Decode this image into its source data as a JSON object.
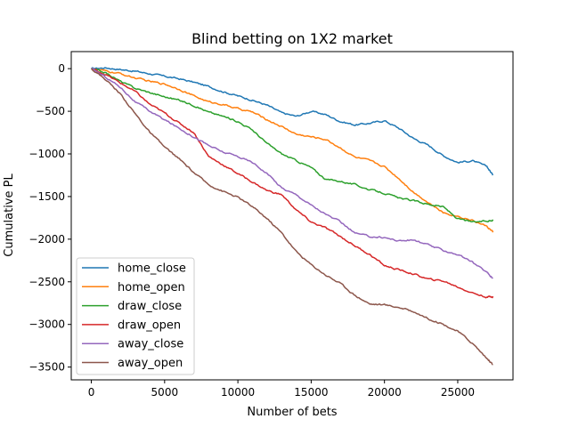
{
  "chart_data": {
    "type": "line",
    "title": "Blind betting on 1X2 market",
    "xlabel": "Number of bets",
    "ylabel": "Cumulative PL",
    "xlim": [
      -1370,
      28770
    ],
    "ylim": [
      -3650,
      200
    ],
    "xticks": [
      0,
      5000,
      10000,
      15000,
      20000,
      25000
    ],
    "xtick_labels": [
      "0",
      "5000",
      "10000",
      "15000",
      "20000",
      "25000"
    ],
    "yticks": [
      0,
      -500,
      -1000,
      -1500,
      -2000,
      -2500,
      -3000,
      -3500
    ],
    "ytick_labels": [
      "0",
      "−500",
      "−1000",
      "−1500",
      "−2000",
      "−2500",
      "−3000",
      "−3500"
    ],
    "grid": false,
    "legend_position": "lower-left",
    "series": [
      {
        "name": "home_close",
        "color": "#1f77b4",
        "x": [
          0,
          1000,
          2000,
          3000,
          4000,
          5000,
          6000,
          7000,
          8000,
          9000,
          10000,
          11000,
          12000,
          13000,
          14000,
          15000,
          16000,
          17000,
          18000,
          19000,
          20000,
          21000,
          22000,
          23000,
          24000,
          25000,
          26000,
          27000,
          27400
        ],
        "y": [
          0,
          10,
          -10,
          -30,
          -60,
          -90,
          -120,
          -160,
          -210,
          -270,
          -320,
          -370,
          -430,
          -520,
          -560,
          -500,
          -540,
          -620,
          -660,
          -640,
          -610,
          -700,
          -820,
          -900,
          -1020,
          -1100,
          -1080,
          -1150,
          -1250
        ]
      },
      {
        "name": "home_open",
        "color": "#ff7f0e",
        "x": [
          0,
          1000,
          2000,
          3000,
          4000,
          5000,
          6000,
          7000,
          8000,
          9000,
          10000,
          11000,
          12000,
          13000,
          14000,
          15000,
          16000,
          17000,
          18000,
          19000,
          20000,
          21000,
          22000,
          23000,
          24000,
          25000,
          26000,
          27000,
          27400
        ],
        "y": [
          0,
          -30,
          -60,
          -110,
          -150,
          -180,
          -240,
          -320,
          -390,
          -420,
          -470,
          -510,
          -600,
          -680,
          -770,
          -800,
          -830,
          -930,
          -1040,
          -1080,
          -1150,
          -1290,
          -1450,
          -1570,
          -1690,
          -1730,
          -1780,
          -1850,
          -1920
        ]
      },
      {
        "name": "draw_close",
        "color": "#2ca02c",
        "x": [
          0,
          1000,
          2000,
          3000,
          4000,
          5000,
          6000,
          7000,
          8000,
          9000,
          10000,
          11000,
          12000,
          13000,
          14000,
          15000,
          16000,
          17000,
          18000,
          19000,
          20000,
          21000,
          22000,
          23000,
          24000,
          25000,
          26000,
          27000,
          27400
        ],
        "y": [
          0,
          -50,
          -150,
          -230,
          -280,
          -330,
          -370,
          -430,
          -510,
          -560,
          -620,
          -720,
          -880,
          -1000,
          -1080,
          -1160,
          -1300,
          -1320,
          -1360,
          -1420,
          -1460,
          -1520,
          -1550,
          -1590,
          -1620,
          -1760,
          -1800,
          -1790,
          -1770
        ]
      },
      {
        "name": "draw_open",
        "color": "#d62728",
        "x": [
          0,
          1000,
          2000,
          3000,
          4000,
          5000,
          6000,
          7000,
          8000,
          9000,
          10000,
          11000,
          12000,
          13000,
          14000,
          15000,
          16000,
          17000,
          18000,
          19000,
          20000,
          21000,
          22000,
          23000,
          24000,
          25000,
          26000,
          27000,
          27400
        ],
        "y": [
          0,
          -70,
          -170,
          -270,
          -420,
          -520,
          -640,
          -750,
          -1030,
          -1130,
          -1230,
          -1330,
          -1430,
          -1480,
          -1660,
          -1800,
          -1870,
          -1970,
          -2080,
          -2180,
          -2310,
          -2360,
          -2410,
          -2470,
          -2490,
          -2560,
          -2630,
          -2680,
          -2670
        ]
      },
      {
        "name": "away_close",
        "color": "#9467bd",
        "x": [
          0,
          1000,
          2000,
          3000,
          4000,
          5000,
          6000,
          7000,
          8000,
          9000,
          10000,
          11000,
          12000,
          13000,
          14000,
          15000,
          16000,
          17000,
          18000,
          19000,
          20000,
          21000,
          22000,
          23000,
          24000,
          25000,
          26000,
          27000,
          27400
        ],
        "y": [
          0,
          -100,
          -220,
          -390,
          -500,
          -600,
          -700,
          -800,
          -900,
          -980,
          -1030,
          -1100,
          -1230,
          -1400,
          -1480,
          -1600,
          -1710,
          -1800,
          -1930,
          -1970,
          -1980,
          -2020,
          -2010,
          -2070,
          -2130,
          -2180,
          -2270,
          -2390,
          -2460
        ]
      },
      {
        "name": "away_open",
        "color": "#8c564b",
        "x": [
          0,
          1000,
          2000,
          3000,
          4000,
          5000,
          6000,
          7000,
          8000,
          9000,
          10000,
          11000,
          12000,
          13000,
          14000,
          15000,
          16000,
          17000,
          18000,
          19000,
          20000,
          21000,
          22000,
          23000,
          24000,
          25000,
          26000,
          27000,
          27400
        ],
        "y": [
          0,
          -130,
          -300,
          -530,
          -750,
          -920,
          -1060,
          -1220,
          -1360,
          -1440,
          -1510,
          -1620,
          -1760,
          -1930,
          -2150,
          -2300,
          -2420,
          -2520,
          -2660,
          -2760,
          -2770,
          -2800,
          -2850,
          -2930,
          -3000,
          -3080,
          -3220,
          -3400,
          -3470
        ]
      }
    ]
  }
}
